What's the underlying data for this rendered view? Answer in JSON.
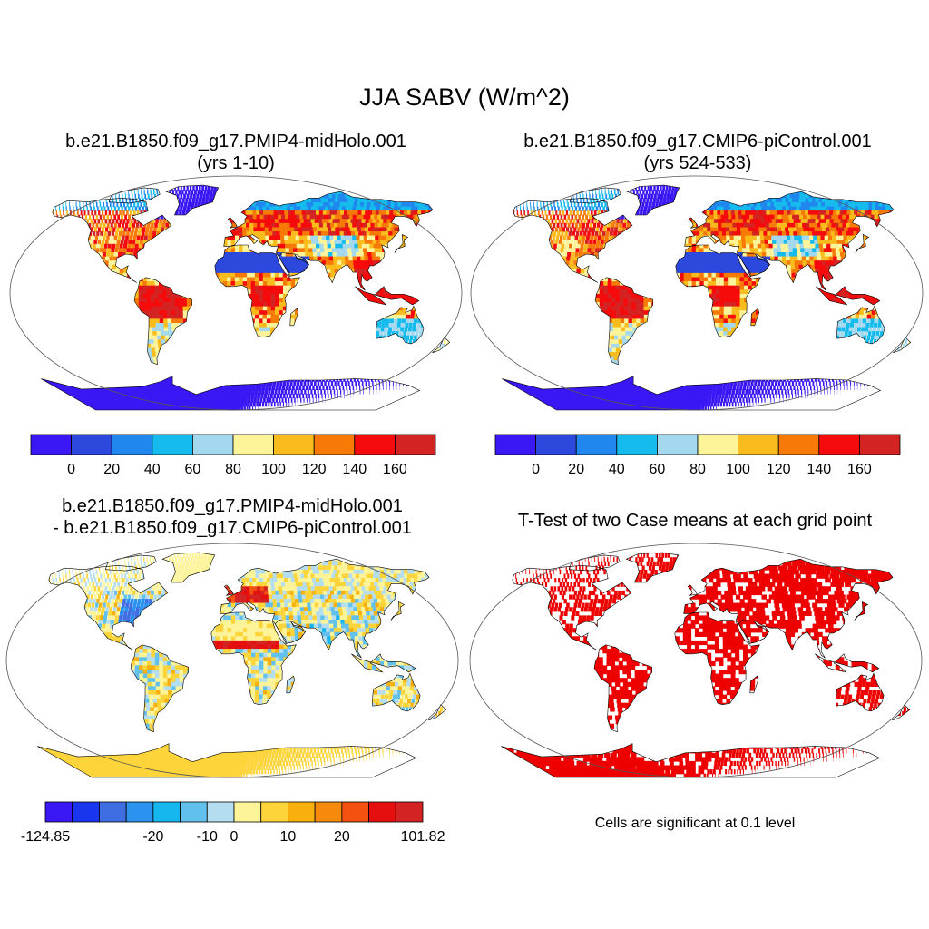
{
  "figure": {
    "title": "JJA SABV (W/m^2)"
  },
  "panels": [
    {
      "id": "test_case",
      "title": [
        "b.e21.B1850.f09_g17.PMIP4-midHolo.001",
        "(yrs 1-10)"
      ],
      "field": "test"
    },
    {
      "id": "reference_case",
      "title": [
        "b.e21.B1850.f09_g17.CMIP6-piControl.001",
        "(yrs 524-533)"
      ],
      "field": "ref"
    },
    {
      "id": "difference",
      "title": [
        "b.e21.B1850.f09_g17.PMIP4-midHolo.001",
        "- b.e21.B1850.f09_g17.CMIP6-piControl.001"
      ],
      "field": "diff"
    },
    {
      "id": "ttest",
      "title": [
        "T-Test of two Case means at each grid point"
      ],
      "field": "sig",
      "note": "Cells are significant at 0.1 level"
    }
  ],
  "colorbars": {
    "absolute": {
      "colors": [
        "#3a17f5",
        "#2d48dc",
        "#1f87ee",
        "#16bbee",
        "#a4d8ef",
        "#fdf49a",
        "#f9bc1c",
        "#f77a07",
        "#f50b0b",
        "#d32323"
      ],
      "labels": [
        "0",
        "20",
        "40",
        "60",
        "80",
        "100",
        "120",
        "140",
        "160"
      ]
    },
    "difference": {
      "colors": [
        "#3a17f5",
        "#1a35ee",
        "#3f6ee3",
        "#2b93ef",
        "#16b6ef",
        "#62c0ec",
        "#b4def0",
        "#fdf49a",
        "#fdd43a",
        "#f7b00c",
        "#f58a0c",
        "#f4500f",
        "#e60f0f",
        "#d32323"
      ],
      "labels": [
        "-124.85",
        "-20",
        "-10",
        "0",
        "10",
        "20",
        "101.82"
      ]
    },
    "significance": {
      "color": "#ee0000"
    }
  },
  "map_style": {
    "projection": "Robinson",
    "coastline_color": "#000000",
    "ocean_color": "#ffffff"
  }
}
